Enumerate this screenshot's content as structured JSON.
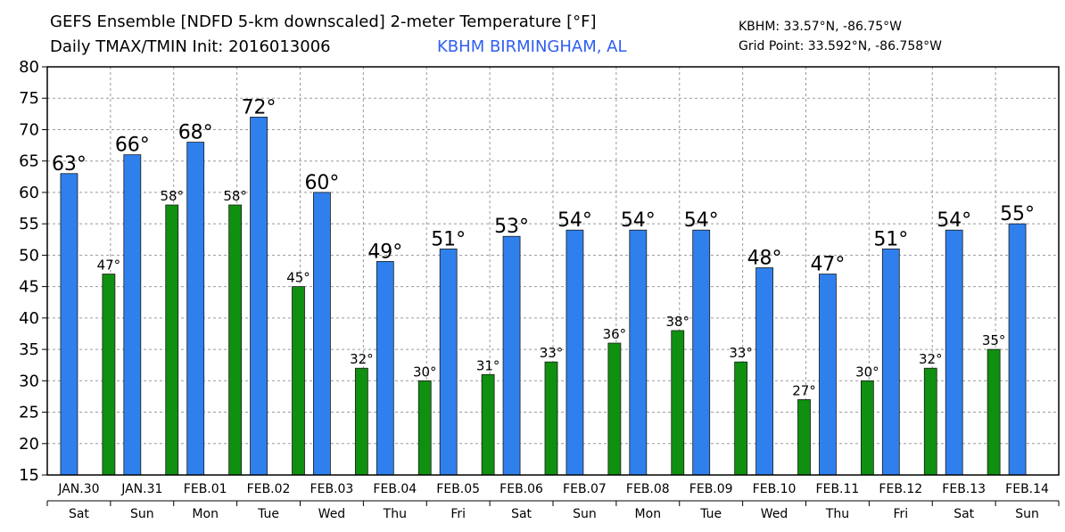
{
  "header": {
    "title_line1": "GEFS Ensemble [NDFD 5-km downscaled] 2-meter Temperature [°F]",
    "title_line2": "Daily TMAX/TMIN Init: 2016013006",
    "station_name": "KBHM BIRMINGHAM, AL",
    "station_coords": "KBHM: 33.57°N, -86.75°W",
    "grid_point": "Grid Point: 33.592°N, -86.758°W"
  },
  "chart_data": {
    "type": "bar",
    "title": "GEFS Ensemble [NDFD 5-km downscaled] 2-meter Temperature [°F]",
    "ylim": [
      15,
      80
    ],
    "yticks": [
      15,
      20,
      25,
      30,
      35,
      40,
      45,
      50,
      55,
      60,
      65,
      70,
      75,
      80
    ],
    "grid": true,
    "degree_symbol": "°",
    "categories": [
      "JAN.30",
      "JAN.31",
      "FEB.01",
      "FEB.02",
      "FEB.03",
      "FEB.04",
      "FEB.05",
      "FEB.06",
      "FEB.07",
      "FEB.08",
      "FEB.09",
      "FEB.10",
      "FEB.11",
      "FEB.12",
      "FEB.13",
      "FEB.14"
    ],
    "days": [
      "Sat",
      "Sun",
      "Mon",
      "Tue",
      "Wed",
      "Thu",
      "Fri",
      "Sat",
      "Sun",
      "Mon",
      "Tue",
      "Wed",
      "Thu",
      "Fri",
      "Sat",
      "Sun"
    ],
    "series": [
      {
        "key": "tmax",
        "color": "#2f80ed",
        "values": [
          63,
          66,
          68,
          72,
          60,
          49,
          51,
          53,
          54,
          54,
          54,
          48,
          47,
          51,
          54,
          55
        ]
      },
      {
        "key": "tmin",
        "color": "#109010",
        "values": [
          47,
          58,
          58,
          45,
          32,
          30,
          31,
          33,
          36,
          38,
          33,
          27,
          30,
          32,
          35,
          null
        ]
      }
    ]
  }
}
